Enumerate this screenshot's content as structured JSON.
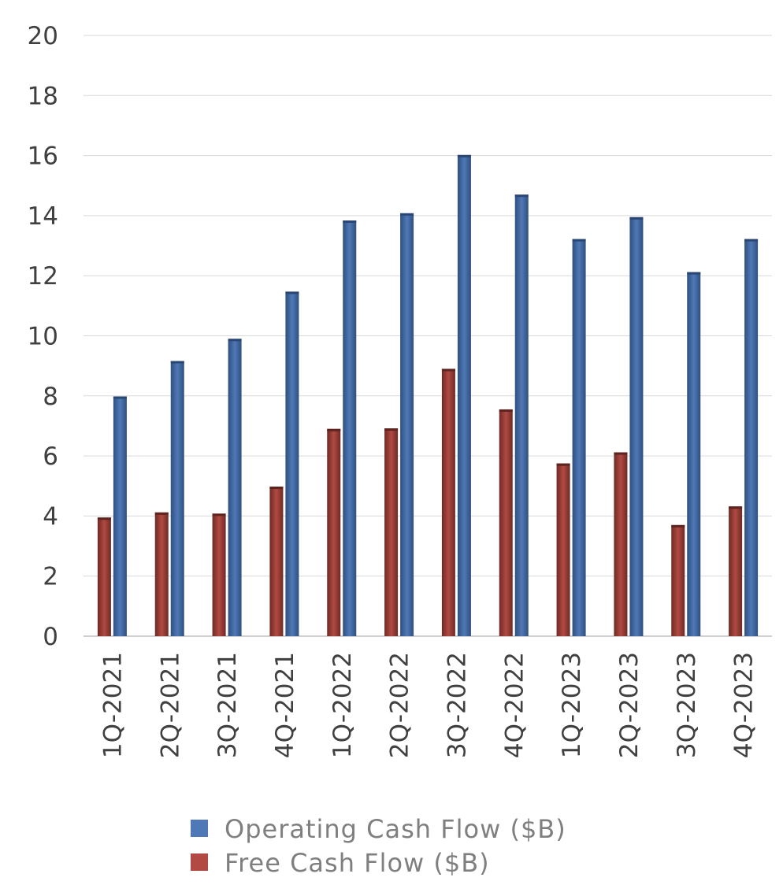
{
  "chart_data": {
    "type": "bar",
    "categories": [
      "1Q-2021",
      "2Q-2021",
      "3Q-2021",
      "4Q-2021",
      "1Q-2022",
      "2Q-2022",
      "3Q-2022",
      "4Q-2022",
      "1Q-2023",
      "2Q-2023",
      "3Q-2023",
      "4Q-2023"
    ],
    "series": [
      {
        "name": "Free Cash Flow ($B)",
        "values": [
          3.95,
          4.12,
          4.08,
          4.98,
          6.9,
          6.92,
          8.9,
          7.55,
          5.75,
          6.12,
          3.7,
          4.32
        ],
        "color": "#b14a42"
      },
      {
        "name": "Operating Cash Flow ($B)",
        "values": [
          7.98,
          9.16,
          9.9,
          11.47,
          13.84,
          14.08,
          16.02,
          14.7,
          13.22,
          13.95,
          12.12,
          13.22
        ],
        "color": "#4f79b6"
      }
    ],
    "ylim": [
      0,
      20
    ],
    "yticks": [
      0,
      2,
      4,
      6,
      8,
      10,
      12,
      14,
      16,
      18,
      20
    ],
    "grid": true,
    "legend": {
      "placement": "bottom",
      "entries": [
        "Operating Cash Flow ($B)",
        "Free Cash Flow ($B)"
      ]
    }
  }
}
